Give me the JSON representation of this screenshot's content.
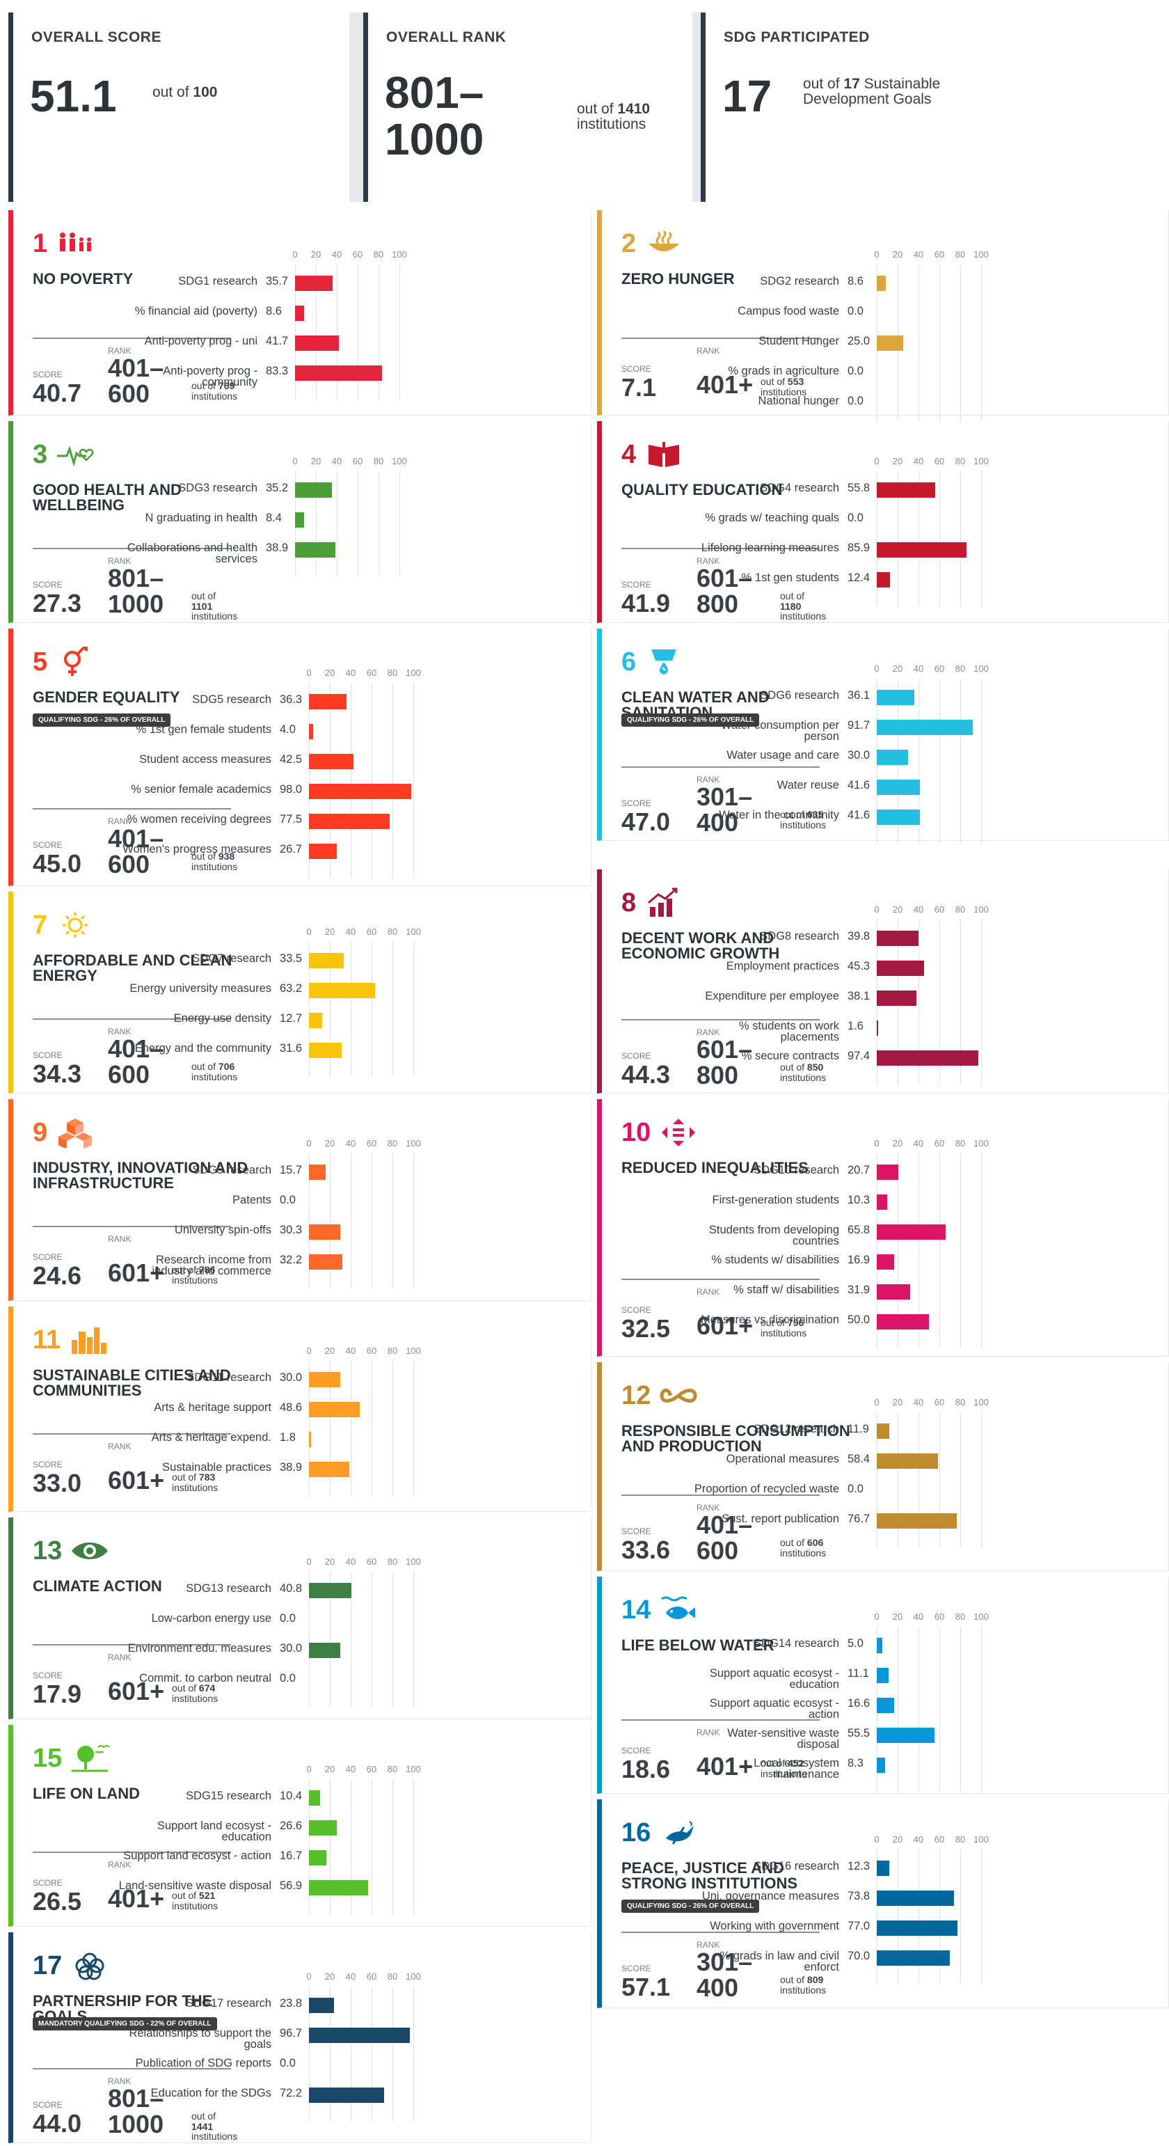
{
  "summary": {
    "overall_score": {
      "label": "OVERALL SCORE",
      "value": "51.1",
      "out_of_prefix": "out of",
      "out_of_value": "100"
    },
    "overall_rank": {
      "label": "OVERALL RANK",
      "value": "801–\n1000",
      "out_of_prefix": "out of",
      "out_of_value": "1410",
      "out_of_suffix": "institutions"
    },
    "sdg_participated": {
      "label": "SDG PARTICIPATED",
      "value": "17",
      "out_of_prefix": "out of",
      "out_of_value": "17",
      "out_of_suffix": "Sustainable Development Goals"
    }
  },
  "labels": {
    "score": "SCORE",
    "rank": "RANK",
    "out_of": "out of",
    "institutions": "institutions"
  },
  "axis_ticks": [
    "0",
    "20",
    "40",
    "60",
    "80",
    "100"
  ],
  "sdgs": [
    {
      "number": "1",
      "title": "NO POVERTY",
      "color": "#e5243b",
      "icon": "family-icon",
      "score": "40.7",
      "rank": "401–\n600",
      "out_of": "769",
      "metrics": [
        {
          "label": "SDG1 research",
          "value": 35.7
        },
        {
          "label": "% financial aid (poverty)",
          "value": 8.6
        },
        {
          "label": "Anti-poverty prog - uni",
          "value": 41.7
        },
        {
          "label": "Anti-poverty prog - community",
          "value": 83.3
        }
      ]
    },
    {
      "number": "2",
      "title": "ZERO HUNGER",
      "color": "#dda63a",
      "icon": "food-bowl-icon",
      "score": "7.1",
      "rank": "401+",
      "out_of": "553",
      "metrics": [
        {
          "label": "SDG2 research",
          "value": 8.6
        },
        {
          "label": "Campus food waste",
          "value": 0.0
        },
        {
          "label": "Student Hunger",
          "value": 25.0
        },
        {
          "label": "% grads in agriculture",
          "value": 0.0
        },
        {
          "label": "National hunger",
          "value": 0.0
        }
      ]
    },
    {
      "number": "3",
      "title": "GOOD HEALTH AND WELLBEING",
      "color": "#4c9f38",
      "icon": "heartbeat-icon",
      "score": "27.3",
      "rank": "801–\n1000",
      "out_of": "1101",
      "metrics": [
        {
          "label": "SDG3 research",
          "value": 35.2
        },
        {
          "label": "N graduating in health",
          "value": 8.4
        },
        {
          "label": "Collaborations and health services",
          "value": 38.9
        }
      ]
    },
    {
      "number": "4",
      "title": "QUALITY EDUCATION",
      "color": "#c5192d",
      "icon": "book-icon",
      "score": "41.9",
      "rank": "601–\n800",
      "out_of": "1180",
      "metrics": [
        {
          "label": "SDG4 research",
          "value": 55.8
        },
        {
          "label": "% grads w/ teaching quals",
          "value": 0.0
        },
        {
          "label": "Lifelong learning measures",
          "value": 85.9
        },
        {
          "label": "% 1st gen students",
          "value": 12.4
        }
      ]
    },
    {
      "number": "5",
      "title": "GENDER EQUALITY",
      "color": "#ff3a21",
      "icon": "gender-icon",
      "badge": "QUALIFYING SDG - 26% OF OVERALL",
      "score": "45.0",
      "rank": "401–\n600",
      "out_of": "938",
      "metrics": [
        {
          "label": "SDG5 research",
          "value": 36.3
        },
        {
          "label": "% 1st gen female students",
          "value": 4.0
        },
        {
          "label": "Student access measures",
          "value": 42.5
        },
        {
          "label": "% senior female academics",
          "value": 98.0
        },
        {
          "label": "% women receiving degrees",
          "value": 77.5
        },
        {
          "label": "Women's progress measures",
          "value": 26.7
        }
      ]
    },
    {
      "number": "6",
      "title": "CLEAN WATER AND SANITATION",
      "color": "#26bde2",
      "icon": "water-drop-icon",
      "badge": "QUALIFYING SDG - 26% OF OVERALL",
      "score": "47.0",
      "rank": "301–\n400",
      "out_of": "635",
      "metrics": [
        {
          "label": "SDG6 research",
          "value": 36.1
        },
        {
          "label": "Water consumption per person",
          "value": 91.7
        },
        {
          "label": "Water usage and care",
          "value": 30.0
        },
        {
          "label": "Water reuse",
          "value": 41.6
        },
        {
          "label": "Water in the community",
          "value": 41.6
        }
      ]
    },
    {
      "number": "7",
      "title": "AFFORDABLE AND CLEAN ENERGY",
      "color": "#fcc30b",
      "icon": "sun-icon",
      "score": "34.3",
      "rank": "401–\n600",
      "out_of": "706",
      "metrics": [
        {
          "label": "SDG7 research",
          "value": 33.5
        },
        {
          "label": "Energy university measures",
          "value": 63.2
        },
        {
          "label": "Energy use density",
          "value": 12.7
        },
        {
          "label": "Energy and the community",
          "value": 31.6
        }
      ]
    },
    {
      "number": "8",
      "title": "DECENT WORK AND ECONOMIC GROWTH",
      "color": "#a21942",
      "icon": "growth-chart-icon",
      "score": "44.3",
      "rank": "601–\n800",
      "out_of": "850",
      "metrics": [
        {
          "label": "SDG8 research",
          "value": 39.8
        },
        {
          "label": "Employment practices",
          "value": 45.3
        },
        {
          "label": "Expenditure per employee",
          "value": 38.1
        },
        {
          "label": "% students on work placements",
          "value": 1.6
        },
        {
          "label": "% secure contracts",
          "value": 97.4
        }
      ]
    },
    {
      "number": "9",
      "title": "INDUSTRY, INNOVATION AND INFRASTRUCTURE",
      "color": "#fd6925",
      "icon": "cubes-icon",
      "score": "24.6",
      "rank": "601+",
      "out_of": "786",
      "metrics": [
        {
          "label": "SDG9 research",
          "value": 15.7
        },
        {
          "label": "Patents",
          "value": 0.0
        },
        {
          "label": "University spin-offs",
          "value": 30.3
        },
        {
          "label": "Research income from industry and commerce",
          "value": 32.2
        }
      ]
    },
    {
      "number": "10",
      "title": "REDUCED INEQUALITIES",
      "color": "#dd1367",
      "icon": "equality-arrows-icon",
      "score": "32.5",
      "rank": "601+",
      "out_of": "796",
      "metrics": [
        {
          "label": "SDG10 research",
          "value": 20.7
        },
        {
          "label": "First-generation students",
          "value": 10.3
        },
        {
          "label": "Students from developing countries",
          "value": 65.8
        },
        {
          "label": "% students w/ disabilities",
          "value": 16.9
        },
        {
          "label": "% staff w/ disabilities",
          "value": 31.9
        },
        {
          "label": "Measures vs discrimination",
          "value": 50.0
        }
      ]
    },
    {
      "number": "11",
      "title": "SUSTAINABLE CITIES AND COMMUNITIES",
      "color": "#fd9d24",
      "icon": "city-icon",
      "score": "33.0",
      "rank": "601+",
      "out_of": "783",
      "metrics": [
        {
          "label": "SDG11 research",
          "value": 30.0
        },
        {
          "label": "Arts & heritage support",
          "value": 48.6
        },
        {
          "label": "Arts & heritage expend.",
          "value": 1.8
        },
        {
          "label": "Sustainable practices",
          "value": 38.9
        }
      ]
    },
    {
      "number": "12",
      "title": "RESPONSIBLE CONSUMPTION AND PRODUCTION",
      "color": "#bf8b2e",
      "icon": "infinity-icon",
      "score": "33.6",
      "rank": "401–\n600",
      "out_of": "606",
      "metrics": [
        {
          "label": "SDG12 research",
          "value": 11.9
        },
        {
          "label": "Operational measures",
          "value": 58.4
        },
        {
          "label": "Proportion of recycled waste",
          "value": 0.0
        },
        {
          "label": "Sust. report publication",
          "value": 76.7
        }
      ]
    },
    {
      "number": "13",
      "title": "CLIMATE ACTION",
      "color": "#3f7e44",
      "icon": "eye-globe-icon",
      "score": "17.9",
      "rank": "601+",
      "out_of": "674",
      "metrics": [
        {
          "label": "SDG13 research",
          "value": 40.8
        },
        {
          "label": "Low-carbon energy use",
          "value": 0.0
        },
        {
          "label": "Environment edu. measures",
          "value": 30.0
        },
        {
          "label": "Commit. to carbon neutral",
          "value": 0.0
        }
      ]
    },
    {
      "number": "14",
      "title": "LIFE BELOW WATER",
      "color": "#0a97d9",
      "icon": "fish-icon",
      "score": "18.6",
      "rank": "401+",
      "out_of": "452",
      "metrics": [
        {
          "label": "SDG14 research",
          "value": 5.0
        },
        {
          "label": "Support aquatic ecosyst - education",
          "value": 11.1
        },
        {
          "label": "Support aquatic ecosyst - action",
          "value": 16.6
        },
        {
          "label": "Water-sensitive waste disposal",
          "value": 55.5
        },
        {
          "label": "Local ecosystem maintenance",
          "value": 8.3
        }
      ]
    },
    {
      "number": "15",
      "title": "LIFE ON LAND",
      "color": "#56c02b",
      "icon": "tree-bird-icon",
      "score": "26.5",
      "rank": "401+",
      "out_of": "521",
      "metrics": [
        {
          "label": "SDG15 research",
          "value": 10.4
        },
        {
          "label": "Support land ecosyst - education",
          "value": 26.6
        },
        {
          "label": "Support land ecosyst - action",
          "value": 16.7
        },
        {
          "label": "Land-sensitive waste disposal",
          "value": 56.9
        }
      ]
    },
    {
      "number": "16",
      "title": "PEACE, JUSTICE AND STRONG INSTITUTIONS",
      "color": "#00689d",
      "icon": "dove-icon",
      "badge": "QUALIFYING SDG - 26% OF OVERALL",
      "score": "57.1",
      "rank": "301–\n400",
      "out_of": "809",
      "metrics": [
        {
          "label": "SDG16 research",
          "value": 12.3
        },
        {
          "label": "Uni. governance measures",
          "value": 73.8
        },
        {
          "label": "Working with government",
          "value": 77.0
        },
        {
          "label": "% grads in law and civil enforct",
          "value": 70.0
        }
      ]
    },
    {
      "number": "17",
      "title": "PARTNERSHIP FOR THE GOALS",
      "color": "#19486a",
      "icon": "partnership-rings-icon",
      "badge": "MANDATORY QUALIFYING SDG - 22% OF OVERALL",
      "score": "44.0",
      "rank": "801–\n1000",
      "out_of": "1441",
      "metrics": [
        {
          "label": "SDG17 research",
          "value": 23.8
        },
        {
          "label": "Relationships to support the goals",
          "value": 96.7
        },
        {
          "label": "Publication of SDG reports",
          "value": 0.0
        },
        {
          "label": "Education for the SDGs",
          "value": 72.2
        }
      ]
    }
  ]
}
